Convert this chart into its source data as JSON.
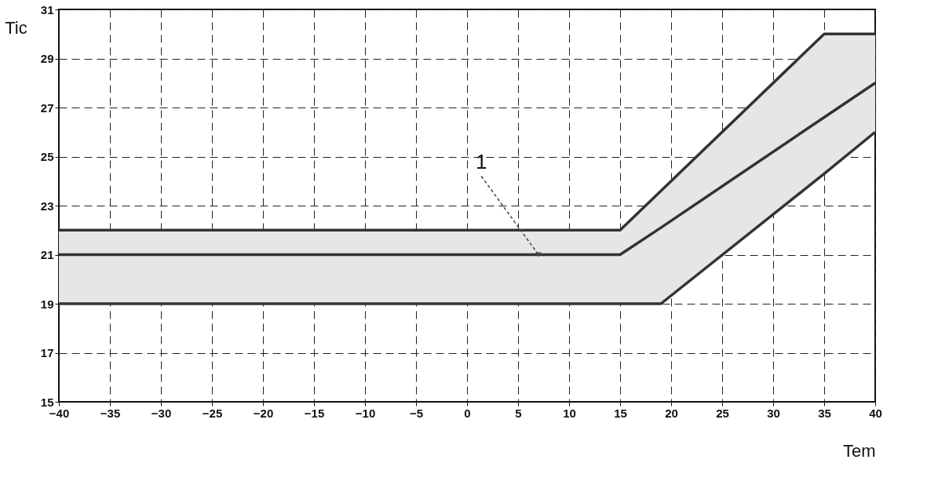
{
  "chart_data": {
    "type": "line",
    "xlabel": "Tem",
    "ylabel": "Tic",
    "x": [
      -40,
      15,
      19,
      35,
      40
    ],
    "series": [
      {
        "color": "#333333",
        "values": [
          22,
          22,
          23.6,
          30,
          30
        ]
      },
      {
        "color": "#333333",
        "values": [
          21,
          21,
          22.1,
          26.6,
          28
        ],
        "lower": [
          19,
          19,
          19,
          24.3,
          26
        ],
        "upper": [
          22,
          22,
          23.6,
          30,
          30
        ]
      },
      {
        "color": "#333333",
        "values": [
          19,
          19,
          19,
          24.3,
          26
        ]
      }
    ],
    "xlim": [
      -40,
      40
    ],
    "xticks": [
      -40,
      -35,
      -30,
      -25,
      -20,
      -15,
      -10,
      -5,
      0,
      5,
      10,
      15,
      20,
      25,
      30,
      35,
      40
    ],
    "ylim": [
      15,
      31
    ],
    "yticks": [
      15,
      17,
      19,
      21,
      23,
      25,
      27,
      29,
      31
    ],
    "grid": true,
    "line_style": "solid",
    "marker": "none",
    "annotations": [
      {
        "text": "1",
        "x": 7,
        "y": 21
      }
    ]
  }
}
